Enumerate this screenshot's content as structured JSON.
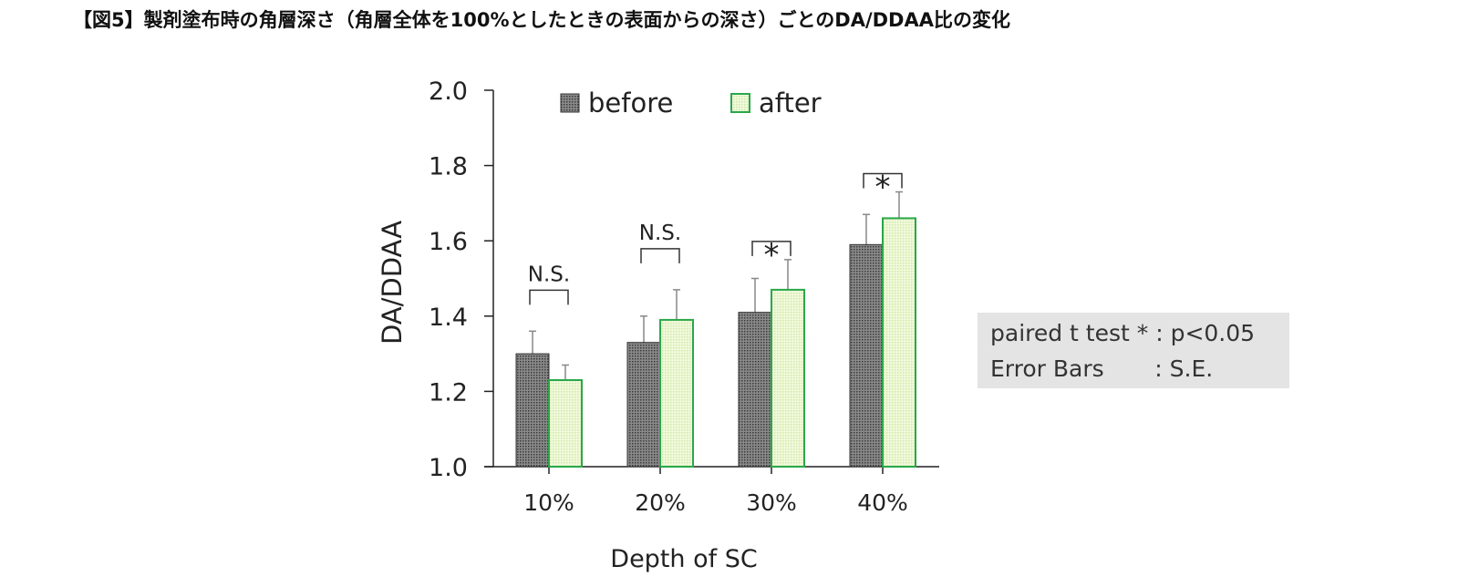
{
  "title": "【図5】製剤塗布時の角層深さ（角層全体を100%としたときの表面からの深さ）ごとのDA/DDAA比の変化",
  "note": {
    "line1": "paired t test * : p<0.05",
    "line2": "Error Bars       : S.E."
  },
  "chart_data": {
    "type": "bar",
    "title": "",
    "xlabel": "Depth of SC",
    "ylabel": "DA/DDAA",
    "ylim": [
      1.0,
      2.0
    ],
    "yticks": [
      "1.0",
      "1.2",
      "1.4",
      "1.6",
      "1.8",
      "2.0"
    ],
    "categories": [
      "10%",
      "20%",
      "30%",
      "40%"
    ],
    "legend_position": "top",
    "series": [
      {
        "name": "before",
        "color": "#6e6e6e",
        "values": [
          1.3,
          1.33,
          1.41,
          1.59
        ],
        "errors": [
          0.06,
          0.07,
          0.09,
          0.08
        ]
      },
      {
        "name": "after",
        "color": "#e6f5c8",
        "edge": "#2aa84a",
        "values": [
          1.23,
          1.39,
          1.47,
          1.66
        ],
        "errors": [
          0.04,
          0.08,
          0.08,
          0.07
        ]
      }
    ],
    "annotations": [
      "N.S.",
      "N.S.",
      "*",
      "*"
    ]
  }
}
